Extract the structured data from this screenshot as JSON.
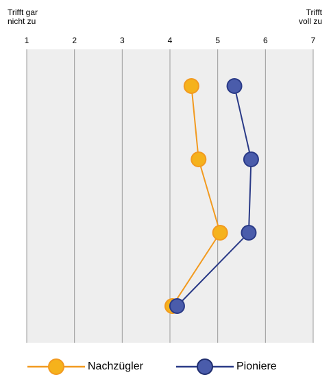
{
  "chart_data": {
    "type": "line",
    "orientation": "horizontal",
    "xlim": [
      1,
      7
    ],
    "x_ticks": [
      1,
      2,
      3,
      4,
      5,
      6,
      7
    ],
    "x_tick_labels": [
      "1",
      "2",
      "3",
      "4",
      "5",
      "6",
      "7"
    ],
    "left_label": "Trifft gar nicht zu",
    "right_label": "Trifft voll zu",
    "grid": "vertical",
    "legend_position": "bottom",
    "item_count": 4,
    "series": [
      {
        "name": "Nachzügler",
        "color": "#f5b21c",
        "line_color": "#f29a1f",
        "values": [
          4.45,
          4.6,
          5.05,
          4.05
        ]
      },
      {
        "name": "Pioniere",
        "color": "#4a5cab",
        "line_color": "#2a3a87",
        "values": [
          5.35,
          5.7,
          5.65,
          4.15
        ]
      }
    ]
  }
}
